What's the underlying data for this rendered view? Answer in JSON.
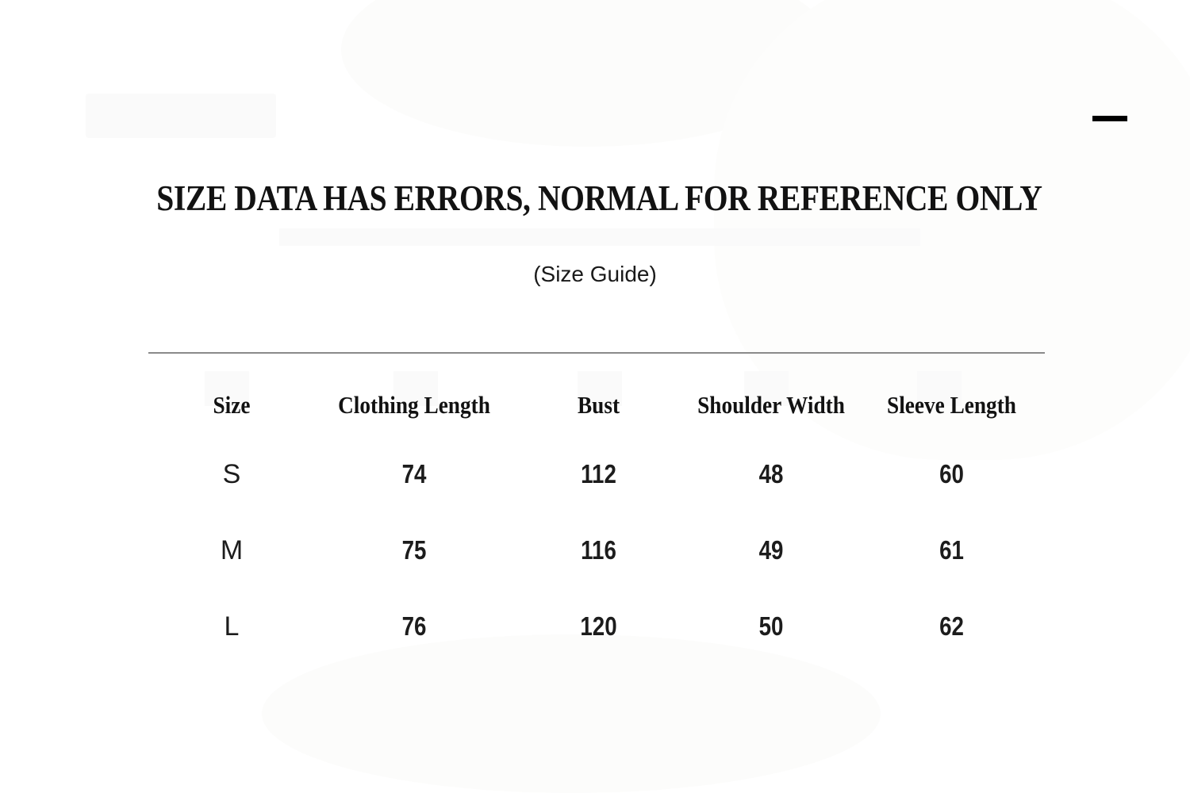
{
  "window": {
    "minimize_label": "minimize"
  },
  "header": {
    "title": "SIZE DATA HAS ERRORS, NORMAL FOR REFERENCE ONLY",
    "subtitle": "(Size Guide)"
  },
  "size_table": {
    "columns": [
      "Size",
      "Clothing Length",
      "Bust",
      "Shoulder Width",
      "Sleeve Length"
    ],
    "rows": [
      {
        "size": "S",
        "clothing_length": "74",
        "bust": "112",
        "shoulder_width": "48",
        "sleeve_length": "60"
      },
      {
        "size": "M",
        "clothing_length": "75",
        "bust": "116",
        "shoulder_width": "49",
        "sleeve_length": "61"
      },
      {
        "size": "L",
        "clothing_length": "76",
        "bust": "120",
        "shoulder_width": "50",
        "sleeve_length": "62"
      }
    ]
  },
  "colors": {
    "divider": "#8a8a8a",
    "text": "#141414",
    "minimize_icon": "#000000",
    "background": "#ffffff"
  }
}
